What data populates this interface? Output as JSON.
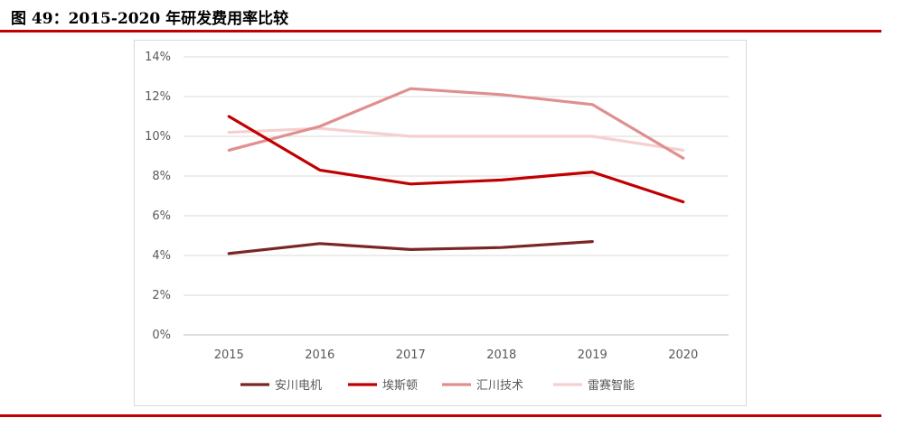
{
  "figure": {
    "title": "图 49：2015-2020 年研发费用率比较"
  },
  "chart_data": {
    "type": "line",
    "title": "",
    "xlabel": "",
    "ylabel": "",
    "categories": [
      "2015",
      "2016",
      "2017",
      "2018",
      "2019",
      "2020"
    ],
    "ylim": [
      0,
      14
    ],
    "yticks": [
      0,
      2,
      4,
      6,
      8,
      10,
      12,
      14
    ],
    "ytick_labels": [
      "0%",
      "2%",
      "4%",
      "6%",
      "8%",
      "10%",
      "12%",
      "14%"
    ],
    "grid": true,
    "legend_position": "bottom",
    "series": [
      {
        "name": "安川电机",
        "color": "#7b2626",
        "values": [
          4.1,
          4.6,
          4.3,
          4.4,
          4.7,
          null
        ]
      },
      {
        "name": "埃斯顿",
        "color": "#c00000",
        "values": [
          11.0,
          8.3,
          7.6,
          7.8,
          8.2,
          6.7
        ]
      },
      {
        "name": "汇川技术",
        "color": "#e08f8f",
        "values": [
          9.3,
          10.5,
          12.4,
          12.1,
          11.6,
          8.9
        ]
      },
      {
        "name": "雷赛智能",
        "color": "#f6cfcf",
        "values": [
          10.2,
          10.4,
          10.0,
          10.0,
          10.0,
          9.3
        ]
      }
    ]
  }
}
